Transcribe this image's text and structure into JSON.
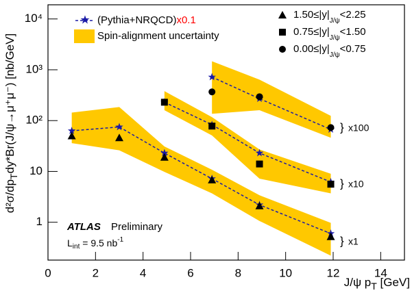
{
  "chart_data": {
    "type": "scatter",
    "log_y": true,
    "grid": false,
    "xlabel": {
      "text": "J/ψ p",
      "subscript": "T",
      "text2": " [GeV]"
    },
    "ylabel": {
      "text": "d²σ/dp",
      "subscript": "T",
      "text2": "dy*Br(J/ψ→μ⁺μ⁻) [nb/GeV]"
    },
    "xlim": [
      0,
      15
    ],
    "xticks": [
      0,
      2,
      4,
      6,
      8,
      10,
      12,
      14
    ],
    "ylim": [
      0.18,
      19000
    ],
    "yticks": [
      1,
      10,
      {
        "value": 100,
        "label": "10²"
      },
      {
        "value": 1000,
        "label": "10³"
      },
      {
        "value": 10000,
        "label": "10⁴"
      }
    ],
    "series": [
      {
        "name": [
          "1.50≤|y|",
          "J/ψ",
          "<2.25"
        ],
        "marker": "triangle",
        "color": "#000000",
        "x": [
          1,
          3,
          4.9,
          6.9,
          8.9,
          11.9
        ],
        "values": [
          50,
          46,
          19,
          6.8,
          2.1,
          0.52
        ]
      },
      {
        "name": [
          "0.75≤|y|",
          "J/ψ",
          "<1.50"
        ],
        "marker": "square",
        "color": "#000000",
        "x": [
          4.9,
          6.9,
          8.9,
          11.9
        ],
        "values": [
          230,
          78,
          14,
          5.6
        ]
      },
      {
        "name": [
          "0.00≤|y|",
          "J/ψ",
          "<0.75"
        ],
        "marker": "circle",
        "color": "#000000",
        "x": [
          6.9,
          8.9,
          11.9
        ],
        "values": [
          367,
          295,
          73
        ]
      }
    ],
    "model": {
      "name": "(Pythia+NRQCD)",
      "factor": "x0.1",
      "factor_color": "#ff0000",
      "color": "#1a1aa6",
      "curves": [
        {
          "x": [
            1,
            3,
            4.9,
            6.9,
            8.9,
            11.9
          ],
          "values": [
            63,
            75,
            23,
            7.2,
            2.2,
            0.6
          ]
        },
        {
          "x": [
            4.9,
            6.9,
            8.9,
            11.9
          ],
          "values": [
            230,
            83,
            23,
            6.2
          ]
        },
        {
          "x": [
            6.9,
            8.9,
            11.9
          ],
          "values": [
            720,
            270,
            67
          ]
        }
      ]
    },
    "band": {
      "name": "Spin-alignment uncertainty",
      "color": "#ffc800",
      "regions": [
        {
          "x": [
            1,
            3,
            4.9,
            6.9,
            8.9,
            11.9
          ],
          "low": [
            36,
            26,
            9.8,
            3.7,
            1.06,
            0.22
          ],
          "high": [
            144,
            185,
            31,
            10.8,
            3.4,
            0.97
          ]
        },
        {
          "x": [
            4.9,
            6.9,
            8.9,
            11.9
          ],
          "low": [
            160,
            51,
            7.2,
            3.7
          ],
          "high": [
            380,
            117,
            27,
            9
          ]
        },
        {
          "x": [
            6.9,
            8.9,
            11.9
          ],
          "low": [
            136,
            160,
            46
          ],
          "high": [
            1470,
            640,
            124
          ]
        }
      ]
    },
    "scale_labels": [
      "x100",
      "x10",
      "x1"
    ],
    "experiment": "ATLAS",
    "status": "Preliminary",
    "lumi": {
      "text": "L",
      "subscript": "int",
      "text2": " = 9.5 nb",
      "superscript": "-1"
    }
  }
}
